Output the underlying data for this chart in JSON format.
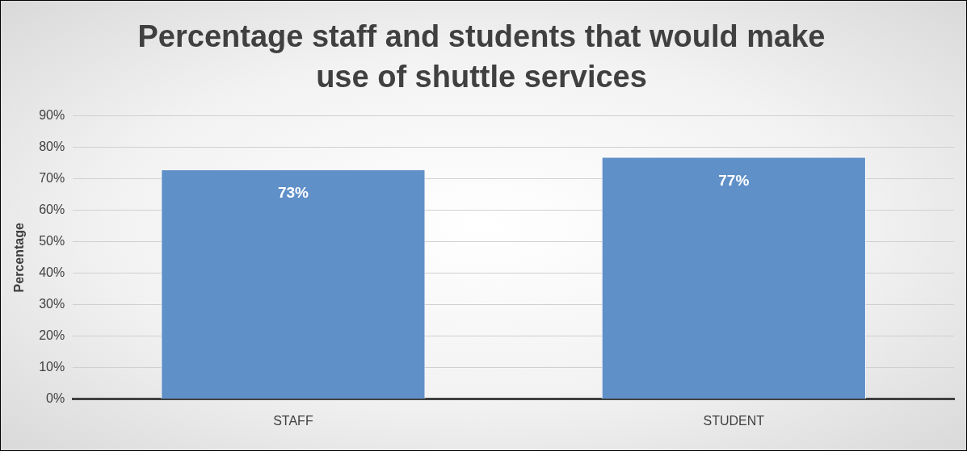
{
  "chart_data": {
    "type": "bar",
    "title": "Percentage staff and students that would make use of shuttle services",
    "ylabel": "Percentage",
    "categories": [
      "STAFF",
      "STUDENT"
    ],
    "values": [
      73,
      77
    ],
    "value_labels": [
      "73%",
      "77%"
    ],
    "color": "#6090c8",
    "ylim": [
      0,
      90
    ],
    "yticks": [
      {
        "value": 0,
        "label": "0%"
      },
      {
        "value": 10,
        "label": "10%"
      },
      {
        "value": 20,
        "label": "20%"
      },
      {
        "value": 30,
        "label": "30%"
      },
      {
        "value": 40,
        "label": "40%"
      },
      {
        "value": 50,
        "label": "50%"
      },
      {
        "value": 60,
        "label": "60%"
      },
      {
        "value": 70,
        "label": "70%"
      },
      {
        "value": 80,
        "label": "80%"
      },
      {
        "value": 90,
        "label": "90%"
      }
    ],
    "grid": "y",
    "legend": false
  }
}
